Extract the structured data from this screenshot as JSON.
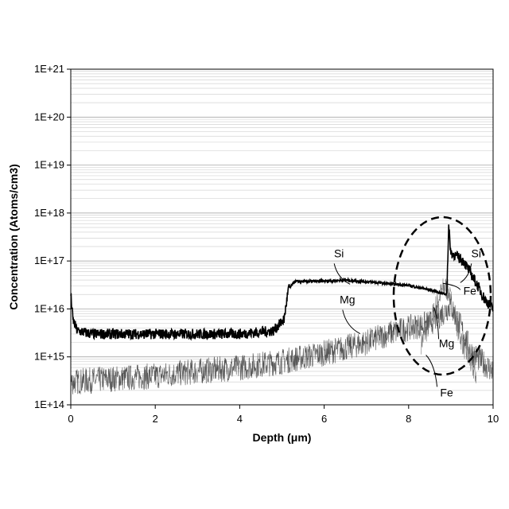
{
  "chart_data": {
    "type": "line",
    "xlabel": "Depth (μm)",
    "ylabel": "Concentration (Atoms/cm3)",
    "xlim": [
      0,
      10
    ],
    "ylim": [
      100000000000000.0,
      1e+21
    ],
    "yscale": "log",
    "grid": true,
    "xticks": [
      "0",
      "2",
      "4",
      "6",
      "8",
      "10"
    ],
    "yticks": [
      "1E+14",
      "1E+15",
      "1E+16",
      "1E+17",
      "1E+18",
      "1E+19",
      "1E+20",
      "1E+21"
    ],
    "series": [
      {
        "name": "Si",
        "color": "#000000",
        "x": [
          0,
          0.05,
          0.15,
          0.5,
          1,
          2,
          3,
          4,
          4.8,
          5.05,
          5.15,
          5.3,
          6,
          6.5,
          7,
          8,
          8.5,
          8.9,
          8.95,
          9.0,
          9.3,
          9.6,
          9.8,
          10
        ],
        "y": [
          2e+16,
          6000000000000000.0,
          3500000000000000.0,
          3000000000000000.0,
          3000000000000000.0,
          3000000000000000.0,
          3000000000000000.0,
          3000000000000000.0,
          3500000000000000.0,
          6000000000000000.0,
          2.5e+16,
          3.7e+16,
          3.8e+16,
          4e+16,
          3.7e+16,
          3.1e+16,
          2.5e+16,
          2e+16,
          5e+17,
          1.5e+17,
          1e+17,
          3.5e+16,
          1.6e+16,
          1e+16
        ]
      },
      {
        "name": "Mg",
        "color": "#555555",
        "x": [
          0,
          1,
          2,
          3,
          4,
          5,
          6,
          7,
          7.5,
          8,
          8.5,
          8.8,
          9.0,
          9.2,
          9.5,
          10
        ],
        "y": [
          300000000000000.0,
          350000000000000.0,
          400000000000000.0,
          500000000000000.0,
          600000000000000.0,
          800000000000000.0,
          1200000000000000.0,
          2000000000000000.0,
          3000000000000000.0,
          4000000000000000.0,
          5000000000000000.0,
          8000000000000000.0,
          1.2e+16,
          5000000000000000.0,
          1200000000000000.0,
          500000000000000.0
        ]
      },
      {
        "name": "Fe",
        "color": "#777777",
        "x": [
          8.3,
          8.5,
          8.7,
          8.85,
          8.95,
          9.05,
          9.2,
          9.4,
          9.6
        ],
        "y": [
          2000000000000000.0,
          5000000000000000.0,
          1.6e+16,
          3e+16,
          2.2e+16,
          1e+16,
          3000000000000000.0,
          1000000000000000.0,
          400000000000000.0
        ]
      }
    ],
    "annotations": [
      {
        "text": "Si",
        "x": 6.35,
        "y": 1.2e+17
      },
      {
        "text": "Si",
        "x": 9.6,
        "y": 1.2e+17
      },
      {
        "text": "Mg",
        "x": 6.55,
        "y": 1.3e+16
      },
      {
        "text": "Mg",
        "x": 8.9,
        "y": 1600000000000000.0
      },
      {
        "text": "Fe",
        "x": 9.45,
        "y": 2e+16
      },
      {
        "text": "Fe",
        "x": 8.9,
        "y": 150000000000000.0
      }
    ]
  }
}
